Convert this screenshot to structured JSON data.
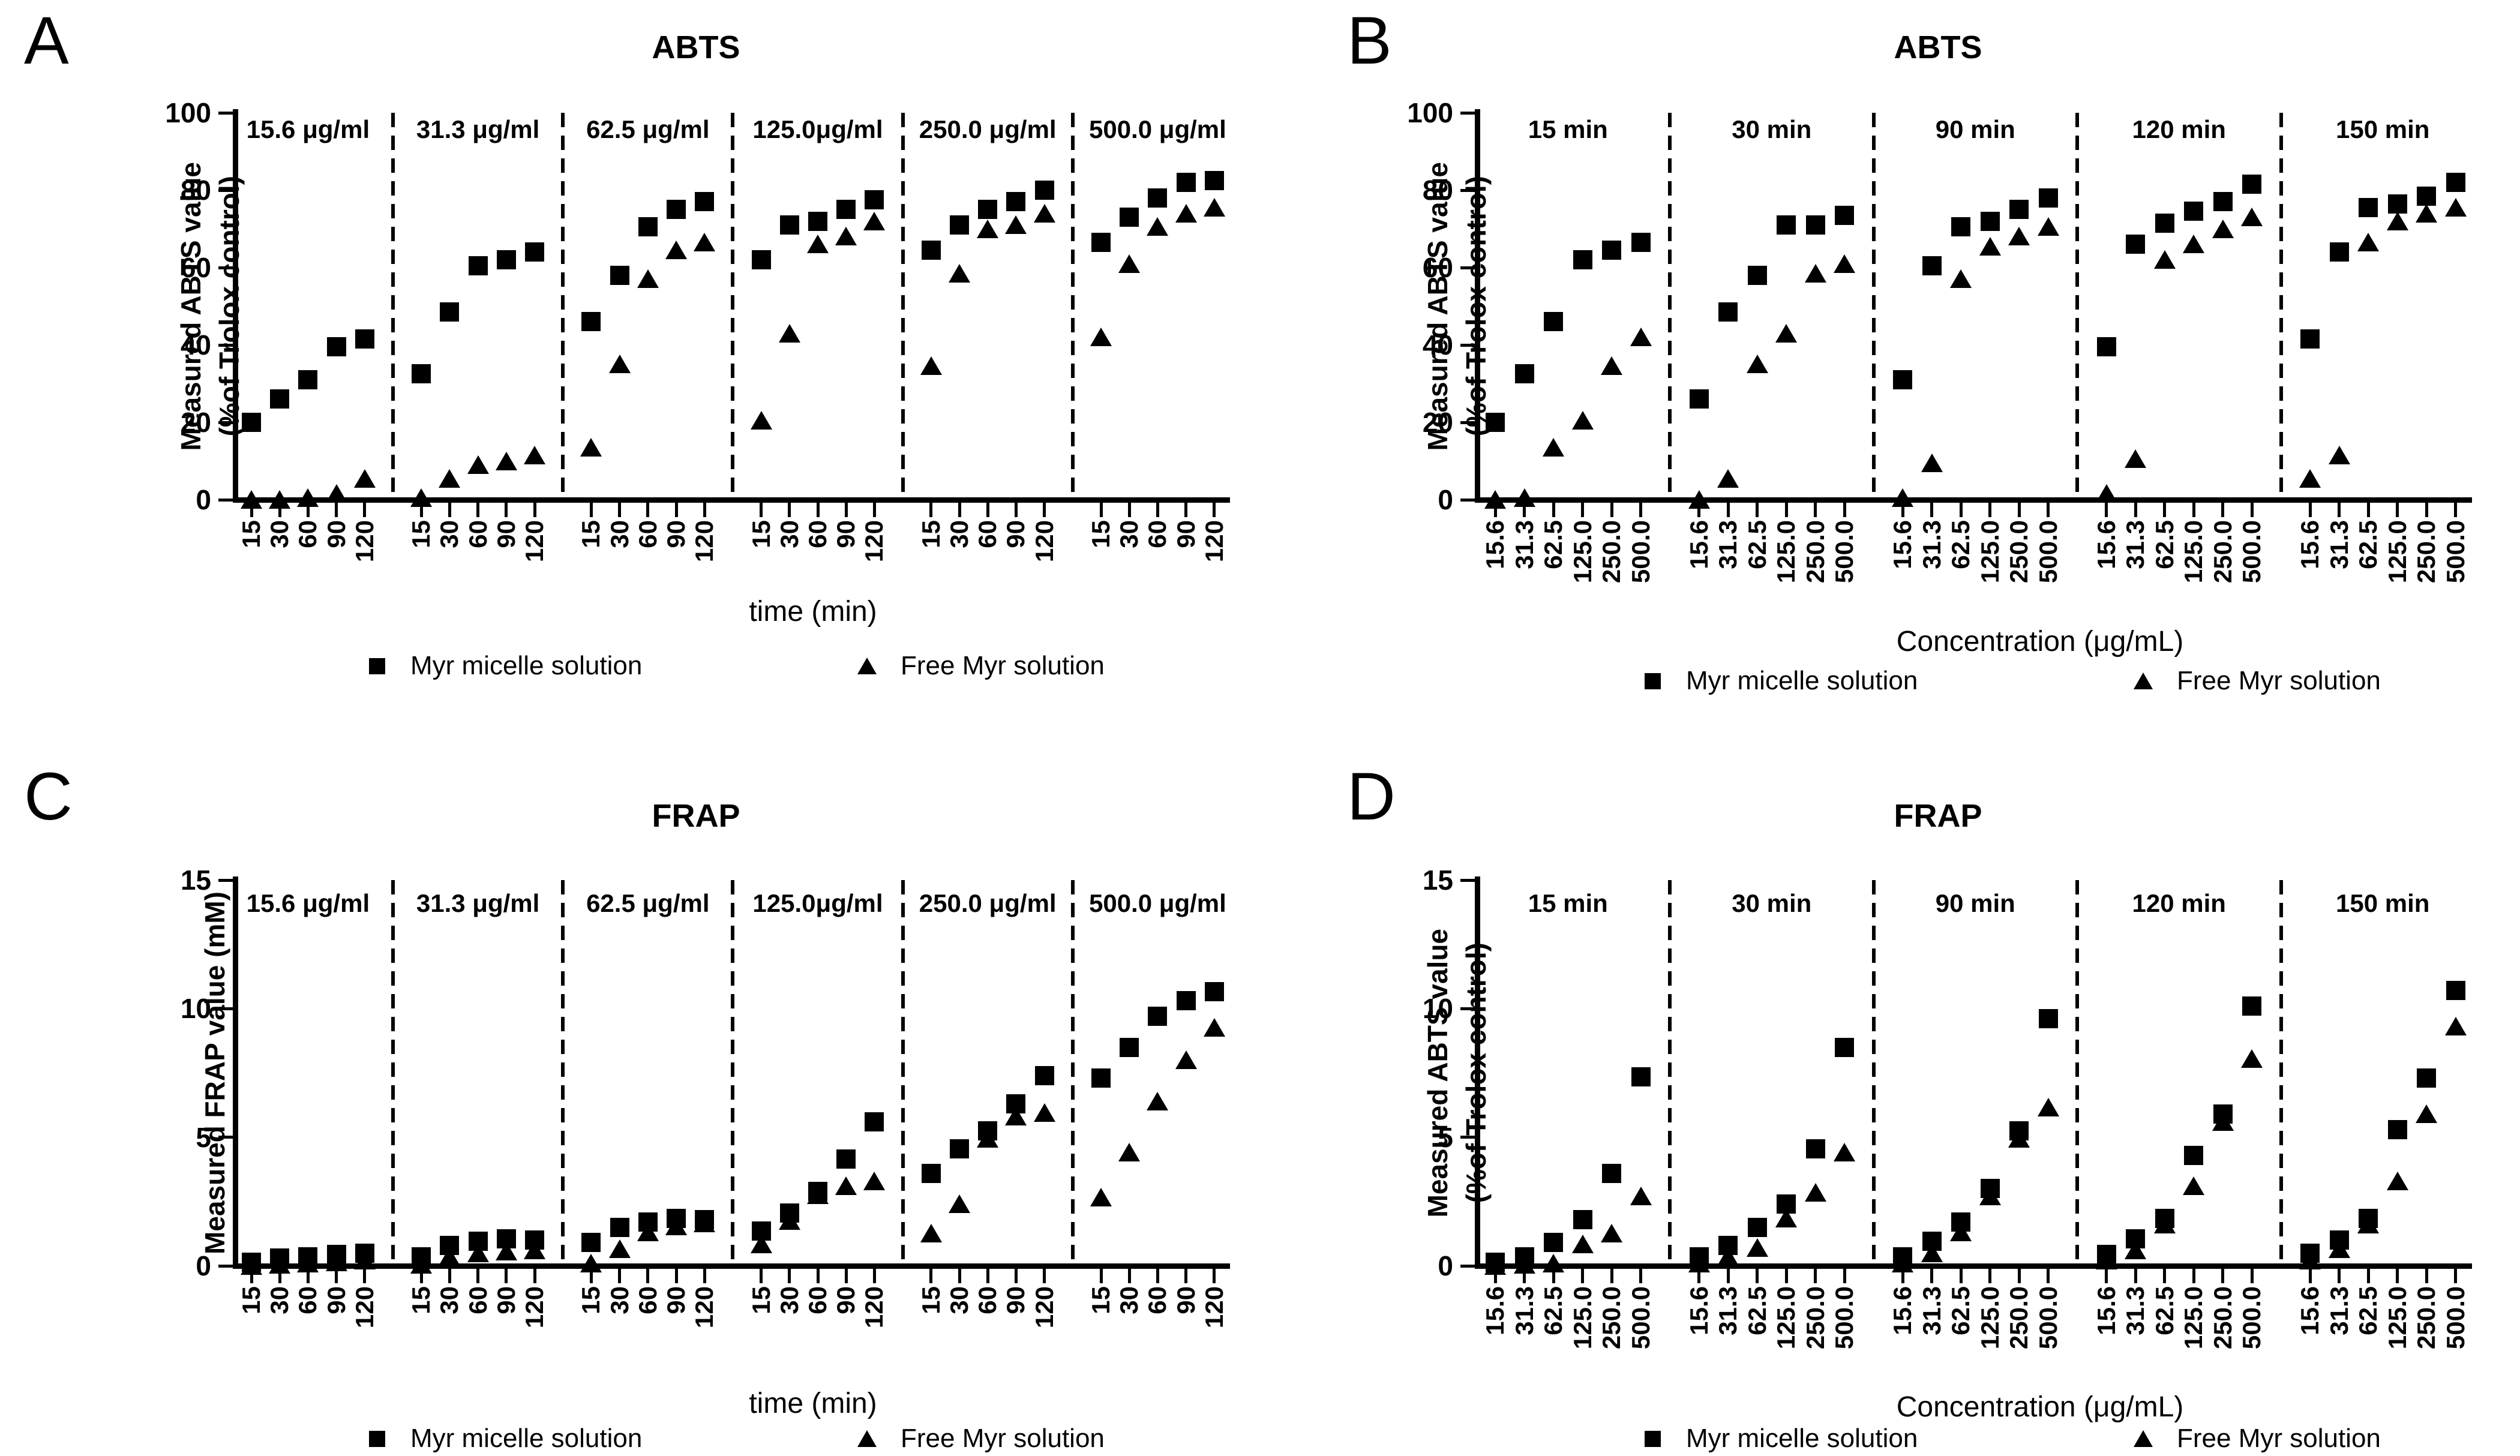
{
  "figure": {
    "background_color": "#ffffff",
    "marker_color": "#000000",
    "panel_letters": [
      "A",
      "B",
      "C",
      "D"
    ]
  },
  "legend": {
    "items": [
      {
        "marker": "square",
        "label": "Myr micelle solution"
      },
      {
        "marker": "triangle",
        "label": "Free Myr solution"
      }
    ]
  },
  "chart_data": [
    {
      "panel": "A",
      "letter": "A",
      "type": "scatter",
      "title": "ABTS",
      "ylabel_lines": [
        "Measured ABTS value",
        "(%of Trolox control)"
      ],
      "xlabel": "time (min)",
      "ylim": [
        0,
        100
      ],
      "yticks": [
        "0",
        "20",
        "40",
        "60",
        "80",
        "100"
      ],
      "x_tick_labels": [
        "15",
        "30",
        "60",
        "90",
        "120"
      ],
      "groups": [
        "15.6 μg/ml",
        "31.3 μg/ml",
        "62.5 μg/ml",
        "125.0μg/ml",
        "250.0 μg/ml",
        "500.0 μg/ml"
      ],
      "grid": false,
      "series": [
        {
          "name": "Myr micelle solution",
          "marker": "square",
          "values_by_group": [
            [
              20,
              26,
              31,
              39.5,
              41.5
            ],
            [
              32.5,
              48.5,
              60.5,
              62,
              64
            ],
            [
              46,
              58,
              70.5,
              75,
              77
            ],
            [
              62,
              71,
              72,
              75,
              77.5
            ],
            [
              64.5,
              71,
              75,
              77,
              80
            ],
            [
              66.5,
              73,
              78,
              82,
              82.5
            ]
          ]
        },
        {
          "name": "Free Myr solution",
          "marker": "triangle",
          "values_by_group": [
            [
              0,
              0,
              0.5,
              1.5,
              5.5
            ],
            [
              0.5,
              5.5,
              9,
              10,
              11.5
            ],
            [
              13.5,
              35,
              57,
              64.5,
              66.5
            ],
            [
              20.5,
              43,
              66,
              68,
              72
            ],
            [
              34.5,
              58.5,
              70,
              71,
              74
            ],
            [
              42,
              61,
              70.5,
              74,
              75.5
            ]
          ]
        }
      ]
    },
    {
      "panel": "B",
      "letter": "B",
      "type": "scatter",
      "title": "ABTS",
      "ylabel_lines": [
        "Measured ABTS value",
        "(%of Trolox control)"
      ],
      "xlabel": "Concentration (μg/mL)",
      "ylim": [
        0,
        100
      ],
      "yticks": [
        "0",
        "20",
        "40",
        "60",
        "80",
        "100"
      ],
      "x_tick_labels": [
        "15.6",
        "31.3",
        "62.5",
        "125.0",
        "250.0",
        "500.0"
      ],
      "groups": [
        "15 min",
        "30 min",
        "90 min",
        "120 min",
        "150 min"
      ],
      "grid": false,
      "series": [
        {
          "name": "Myr micelle solution",
          "marker": "square",
          "values_by_group": [
            [
              20,
              32.5,
              46,
              62,
              64.5,
              66.5
            ],
            [
              26,
              48.5,
              58,
              71,
              71,
              73.5
            ],
            [
              31,
              60.5,
              70.5,
              72,
              75,
              78
            ],
            [
              39.5,
              66,
              71.5,
              74.5,
              77,
              81.5
            ],
            [
              41.5,
              64,
              75.5,
              76.5,
              78.5,
              82
            ]
          ]
        },
        {
          "name": "Free Myr solution",
          "marker": "triangle",
          "values_by_group": [
            [
              0,
              0.5,
              13.5,
              20.5,
              34.5,
              42
            ],
            [
              0,
              5.5,
              35,
              43,
              58.5,
              61
            ],
            [
              0.5,
              9.5,
              57,
              65.5,
              68,
              70.5
            ],
            [
              1.5,
              10.5,
              62,
              66,
              70,
              73
            ],
            [
              5.5,
              11.5,
              66.5,
              72,
              74,
              75.5
            ]
          ]
        }
      ]
    },
    {
      "panel": "C",
      "letter": "C",
      "type": "scatter",
      "title": "FRAP",
      "ylabel_lines": [
        "Measured FRAP value (mM)"
      ],
      "xlabel": "time (min)",
      "ylim": [
        0,
        15
      ],
      "yticks": [
        "0",
        "5",
        "10",
        "15"
      ],
      "x_tick_labels": [
        "15",
        "30",
        "60",
        "90",
        "120"
      ],
      "groups": [
        "15.6 μg/ml",
        "31.3 μg/ml",
        "62.5 μg/ml",
        "125.0μg/ml",
        "250.0 μg/ml",
        "500.0 μg/ml"
      ],
      "grid": false,
      "series": [
        {
          "name": "Myr micelle solution",
          "marker": "square",
          "values_by_group": [
            [
              0.15,
              0.3,
              0.35,
              0.45,
              0.5
            ],
            [
              0.35,
              0.8,
              0.95,
              1.05,
              1.0
            ],
            [
              0.9,
              1.5,
              1.7,
              1.85,
              1.8
            ],
            [
              1.35,
              2.05,
              2.9,
              4.15,
              5.6
            ],
            [
              3.6,
              4.55,
              5.25,
              6.3,
              7.4
            ],
            [
              7.3,
              8.5,
              9.7,
              10.3,
              10.65
            ]
          ]
        },
        {
          "name": "Free Myr solution",
          "marker": "triangle",
          "values_by_group": [
            [
              0,
              0.05,
              0.1,
              0.15,
              0.2
            ],
            [
              0.05,
              0.35,
              0.5,
              0.55,
              0.6
            ],
            [
              0.1,
              0.65,
              1.3,
              1.55,
              1.65
            ],
            [
              0.85,
              1.75,
              2.75,
              3.1,
              3.3
            ],
            [
              1.25,
              2.4,
              4.95,
              5.8,
              5.95
            ],
            [
              2.65,
              4.4,
              6.4,
              8.0,
              9.25
            ]
          ]
        }
      ]
    },
    {
      "panel": "D",
      "letter": "D",
      "type": "scatter",
      "title": "FRAP",
      "ylabel_lines": [
        "Measured ABTS value",
        "(%of Trolox control)"
      ],
      "xlabel": "Concentration (μg/mL)",
      "ylim": [
        0,
        15
      ],
      "yticks": [
        "0",
        "5",
        "10",
        "15"
      ],
      "x_tick_labels": [
        "15.6",
        "31.3",
        "62.5",
        "125.0",
        "250.0",
        "500.0"
      ],
      "groups": [
        "15 min",
        "30 min",
        "90 min",
        "120 min",
        "150 min"
      ],
      "grid": false,
      "series": [
        {
          "name": "Myr micelle solution",
          "marker": "square",
          "values_by_group": [
            [
              0.15,
              0.35,
              0.9,
              1.8,
              3.6,
              7.35
            ],
            [
              0.35,
              0.8,
              1.5,
              2.4,
              4.55,
              8.5
            ],
            [
              0.35,
              0.95,
              1.7,
              3.0,
              5.25,
              9.6
            ],
            [
              0.45,
              1.05,
              1.85,
              4.3,
              5.9,
              10.1
            ],
            [
              0.5,
              1.0,
              1.85,
              5.3,
              7.3,
              10.7
            ]
          ]
        },
        {
          "name": "Free Myr solution",
          "marker": "triangle",
          "values_by_group": [
            [
              0,
              0.05,
              0.1,
              0.85,
              1.25,
              2.7
            ],
            [
              0.1,
              0.35,
              0.7,
              1.85,
              2.85,
              4.4
            ],
            [
              0.1,
              0.5,
              1.3,
              2.7,
              4.95,
              6.15
            ],
            [
              0.2,
              0.6,
              1.6,
              3.1,
              5.6,
              8.05
            ],
            [
              0.2,
              0.65,
              1.6,
              3.3,
              5.9,
              9.3
            ]
          ]
        }
      ]
    }
  ]
}
